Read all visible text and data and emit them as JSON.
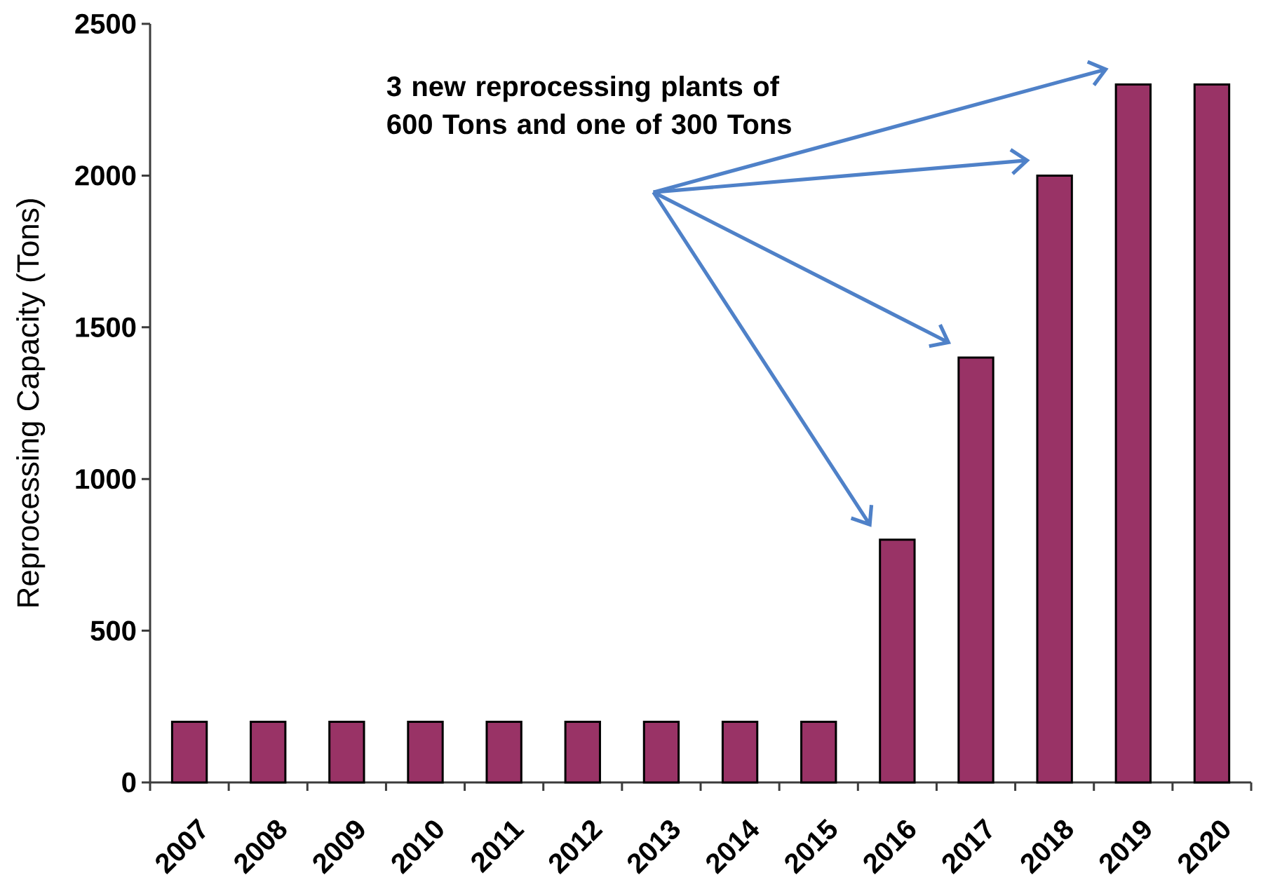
{
  "chart_data": {
    "type": "bar",
    "categories": [
      "2007",
      "2008",
      "2009",
      "2010",
      "2011",
      "2012",
      "2013",
      "2014",
      "2015",
      "2016",
      "2017",
      "2018",
      "2019",
      "2020"
    ],
    "values": [
      200,
      200,
      200,
      200,
      200,
      200,
      200,
      200,
      200,
      800,
      1400,
      2000,
      2300,
      2300
    ],
    "color": "#993366",
    "ylabel": "Reprocessing Capacity (Tons)",
    "ylim": [
      0,
      2500
    ],
    "yticks": [
      0,
      500,
      1000,
      1500,
      2000,
      2500
    ],
    "annotations": [
      "3 new reprocessing plants of 600 Tons and one of 300 Tons"
    ]
  }
}
